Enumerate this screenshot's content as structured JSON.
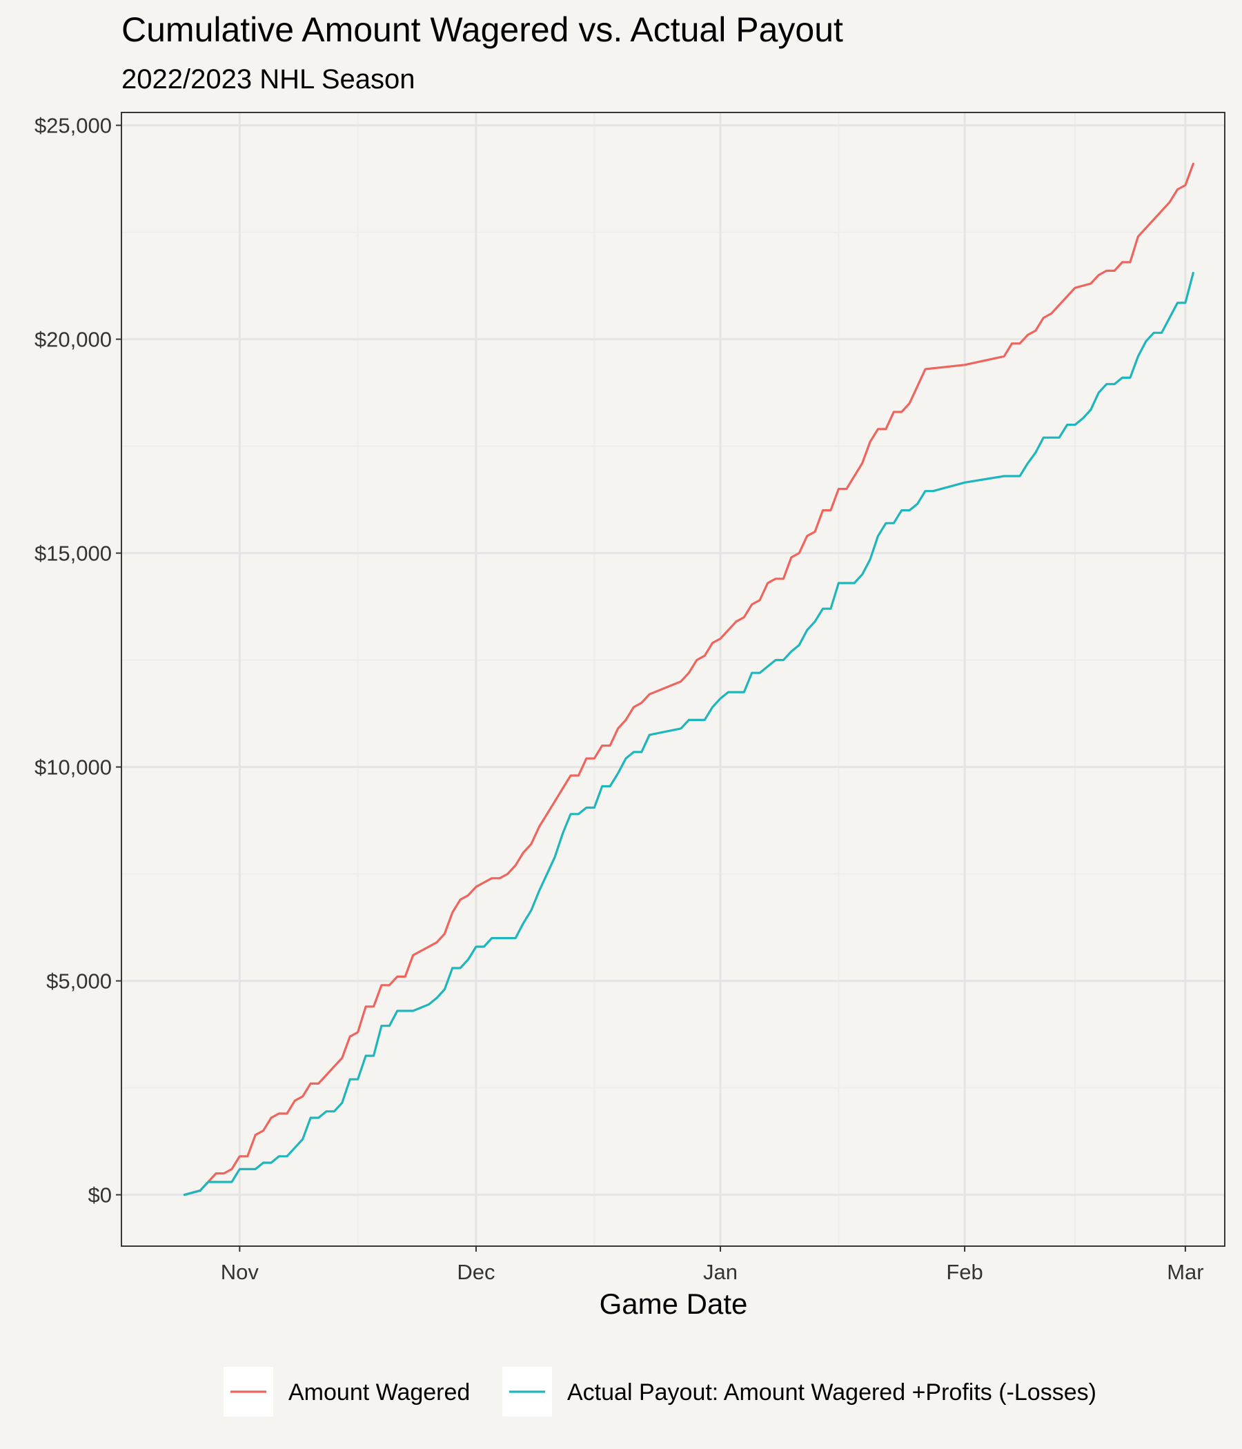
{
  "chart_data": {
    "type": "line",
    "title": "Cumulative Amount Wagered vs. Actual Payout",
    "subtitle": "2022/2023 NHL Season",
    "xlabel": "Game Date",
    "ylabel": "",
    "xlim": [
      "2022-10-17",
      "2023-03-06"
    ],
    "ylim": [
      -1200,
      25300
    ],
    "x_ticks": [
      {
        "date": "2022-11-01",
        "label": "Nov"
      },
      {
        "date": "2022-12-01",
        "label": "Dec"
      },
      {
        "date": "2023-01-01",
        "label": "Jan"
      },
      {
        "date": "2023-02-01",
        "label": "Feb"
      },
      {
        "date": "2023-03-01",
        "label": "Mar"
      }
    ],
    "x_minor_ticks": [
      "2022-11-16",
      "2022-12-16",
      "2023-01-16",
      "2023-02-15"
    ],
    "y_ticks": [
      {
        "value": 0,
        "label": "$0"
      },
      {
        "value": 5000,
        "label": "$5,000"
      },
      {
        "value": 10000,
        "label": "$10,000"
      },
      {
        "value": 15000,
        "label": "$15,000"
      },
      {
        "value": 20000,
        "label": "$20,000"
      },
      {
        "value": 25000,
        "label": "$25,000"
      }
    ],
    "y_minor_ticks": [
      2500,
      7500,
      12500,
      17500,
      22500
    ],
    "grid": true,
    "legend_position": "bottom",
    "series": [
      {
        "name": "Amount Wagered",
        "color": "#f0645e",
        "x": [
          "2022-10-25",
          "2022-10-27",
          "2022-10-28",
          "2022-10-29",
          "2022-10-30",
          "2022-10-31",
          "2022-11-01",
          "2022-11-02",
          "2022-11-03",
          "2022-11-04",
          "2022-11-05",
          "2022-11-06",
          "2022-11-07",
          "2022-11-08",
          "2022-11-09",
          "2022-11-10",
          "2022-11-11",
          "2022-11-12",
          "2022-11-13",
          "2022-11-14",
          "2022-11-15",
          "2022-11-16",
          "2022-11-17",
          "2022-11-18",
          "2022-11-19",
          "2022-11-20",
          "2022-11-21",
          "2022-11-22",
          "2022-11-23",
          "2022-11-26",
          "2022-11-27",
          "2022-11-28",
          "2022-11-29",
          "2022-11-30",
          "2022-12-01",
          "2022-12-02",
          "2022-12-03",
          "2022-12-04",
          "2022-12-05",
          "2022-12-06",
          "2022-12-07",
          "2022-12-08",
          "2022-12-09",
          "2022-12-10",
          "2022-12-11",
          "2022-12-12",
          "2022-12-13",
          "2022-12-14",
          "2022-12-15",
          "2022-12-16",
          "2022-12-17",
          "2022-12-18",
          "2022-12-19",
          "2022-12-20",
          "2022-12-21",
          "2022-12-22",
          "2022-12-23",
          "2022-12-27",
          "2022-12-28",
          "2022-12-29",
          "2022-12-30",
          "2022-12-31",
          "2023-01-01",
          "2023-01-02",
          "2023-01-03",
          "2023-01-04",
          "2023-01-05",
          "2023-01-06",
          "2023-01-07",
          "2023-01-08",
          "2023-01-09",
          "2023-01-10",
          "2023-01-11",
          "2023-01-12",
          "2023-01-13",
          "2023-01-14",
          "2023-01-15",
          "2023-01-16",
          "2023-01-17",
          "2023-01-19",
          "2023-01-20",
          "2023-01-21",
          "2023-01-22",
          "2023-01-23",
          "2023-01-24",
          "2023-01-25",
          "2023-01-26",
          "2023-01-27",
          "2023-02-01",
          "2023-02-06",
          "2023-02-07",
          "2023-02-08",
          "2023-02-09",
          "2023-02-10",
          "2023-02-11",
          "2023-02-12",
          "2023-02-13",
          "2023-02-15",
          "2023-02-17",
          "2023-02-18",
          "2023-02-19",
          "2023-02-20",
          "2023-02-21",
          "2023-02-22",
          "2023-02-23",
          "2023-02-24",
          "2023-02-25",
          "2023-02-26",
          "2023-02-27",
          "2023-02-28",
          "2023-03-01",
          "2023-03-02"
        ],
        "values": [
          0,
          100,
          300,
          500,
          500,
          600,
          900,
          900,
          1400,
          1500,
          1800,
          1900,
          1900,
          2200,
          2300,
          2600,
          2600,
          2800,
          3000,
          3200,
          3700,
          3800,
          4400,
          4400,
          4900,
          4900,
          5100,
          5100,
          5600,
          5900,
          6100,
          6600,
          6900,
          7000,
          7200,
          7300,
          7400,
          7400,
          7500,
          7700,
          8000,
          8200,
          8600,
          8900,
          9200,
          9500,
          9800,
          9800,
          10200,
          10200,
          10500,
          10500,
          10900,
          11100,
          11400,
          11500,
          11700,
          12000,
          12200,
          12500,
          12600,
          12900,
          13000,
          13200,
          13400,
          13500,
          13800,
          13900,
          14300,
          14400,
          14400,
          14900,
          15000,
          15400,
          15500,
          16000,
          16000,
          16500,
          16500,
          17100,
          17600,
          17900,
          17900,
          18300,
          18300,
          18500,
          18900,
          19300,
          19400,
          19600,
          19900,
          19900,
          20100,
          20200,
          20500,
          20600,
          20800,
          21200,
          21300,
          21500,
          21600,
          21600,
          21800,
          21800,
          22400,
          22600,
          22800,
          23000,
          23200,
          23500,
          23600,
          24100
        ]
      },
      {
        "name": "Actual Payout: Amount Wagered +Profits (-Losses)",
        "color": "#1eb6bc",
        "x": [
          "2022-10-25",
          "2022-10-27",
          "2022-10-28",
          "2022-10-29",
          "2022-10-30",
          "2022-10-31",
          "2022-11-01",
          "2022-11-02",
          "2022-11-03",
          "2022-11-04",
          "2022-11-05",
          "2022-11-06",
          "2022-11-07",
          "2022-11-08",
          "2022-11-09",
          "2022-11-10",
          "2022-11-11",
          "2022-11-12",
          "2022-11-13",
          "2022-11-14",
          "2022-11-15",
          "2022-11-16",
          "2022-11-17",
          "2022-11-18",
          "2022-11-19",
          "2022-11-20",
          "2022-11-21",
          "2022-11-22",
          "2022-11-23",
          "2022-11-25",
          "2022-11-26",
          "2022-11-27",
          "2022-11-28",
          "2022-11-29",
          "2022-11-30",
          "2022-12-01",
          "2022-12-02",
          "2022-12-03",
          "2022-12-04",
          "2022-12-05",
          "2022-12-06",
          "2022-12-07",
          "2022-12-08",
          "2022-12-09",
          "2022-12-10",
          "2022-12-11",
          "2022-12-12",
          "2022-12-13",
          "2022-12-14",
          "2022-12-15",
          "2022-12-16",
          "2022-12-17",
          "2022-12-18",
          "2022-12-19",
          "2022-12-20",
          "2022-12-21",
          "2022-12-22",
          "2022-12-23",
          "2022-12-27",
          "2022-12-28",
          "2022-12-29",
          "2022-12-30",
          "2022-12-31",
          "2023-01-01",
          "2023-01-02",
          "2023-01-03",
          "2023-01-04",
          "2023-01-05",
          "2023-01-06",
          "2023-01-07",
          "2023-01-08",
          "2023-01-09",
          "2023-01-10",
          "2023-01-11",
          "2023-01-12",
          "2023-01-13",
          "2023-01-14",
          "2023-01-15",
          "2023-01-16",
          "2023-01-17",
          "2023-01-18",
          "2023-01-19",
          "2023-01-20",
          "2023-01-21",
          "2023-01-22",
          "2023-01-23",
          "2023-01-24",
          "2023-01-25",
          "2023-01-26",
          "2023-01-27",
          "2023-01-28",
          "2023-02-01",
          "2023-02-06",
          "2023-02-08",
          "2023-02-09",
          "2023-02-10",
          "2023-02-11",
          "2023-02-13",
          "2023-02-14",
          "2023-02-15",
          "2023-02-16",
          "2023-02-17",
          "2023-02-18",
          "2023-02-19",
          "2023-02-20",
          "2023-02-21",
          "2023-02-22",
          "2023-02-23",
          "2023-02-24",
          "2023-02-25",
          "2023-02-26",
          "2023-02-28",
          "2023-03-01",
          "2023-03-02"
        ],
        "values": [
          0,
          100,
          300,
          300,
          300,
          300,
          600,
          600,
          600,
          750,
          750,
          900,
          900,
          1100,
          1300,
          1800,
          1800,
          1950,
          1950,
          2150,
          2700,
          2700,
          3250,
          3250,
          3950,
          3950,
          4300,
          4300,
          4300,
          4450,
          4600,
          4800,
          5300,
          5300,
          5500,
          5800,
          5800,
          6000,
          6000,
          6000,
          6000,
          6350,
          6650,
          7100,
          7500,
          7900,
          8450,
          8900,
          8900,
          9050,
          9050,
          9550,
          9550,
          9850,
          10200,
          10350,
          10350,
          10750,
          10900,
          11100,
          11100,
          11100,
          11400,
          11600,
          11750,
          11750,
          11750,
          12200,
          12200,
          12350,
          12500,
          12500,
          12700,
          12850,
          13200,
          13400,
          13700,
          13700,
          14300,
          14300,
          14300,
          14500,
          14850,
          15400,
          15700,
          15700,
          16000,
          16000,
          16150,
          16450,
          16450,
          16650,
          16800,
          16800,
          17100,
          17350,
          17700,
          17700,
          18000,
          18000,
          18150,
          18350,
          18750,
          18950,
          18950,
          19100,
          19100,
          19600,
          19950,
          20150,
          20150,
          20850,
          20850,
          21550
        ]
      }
    ]
  }
}
